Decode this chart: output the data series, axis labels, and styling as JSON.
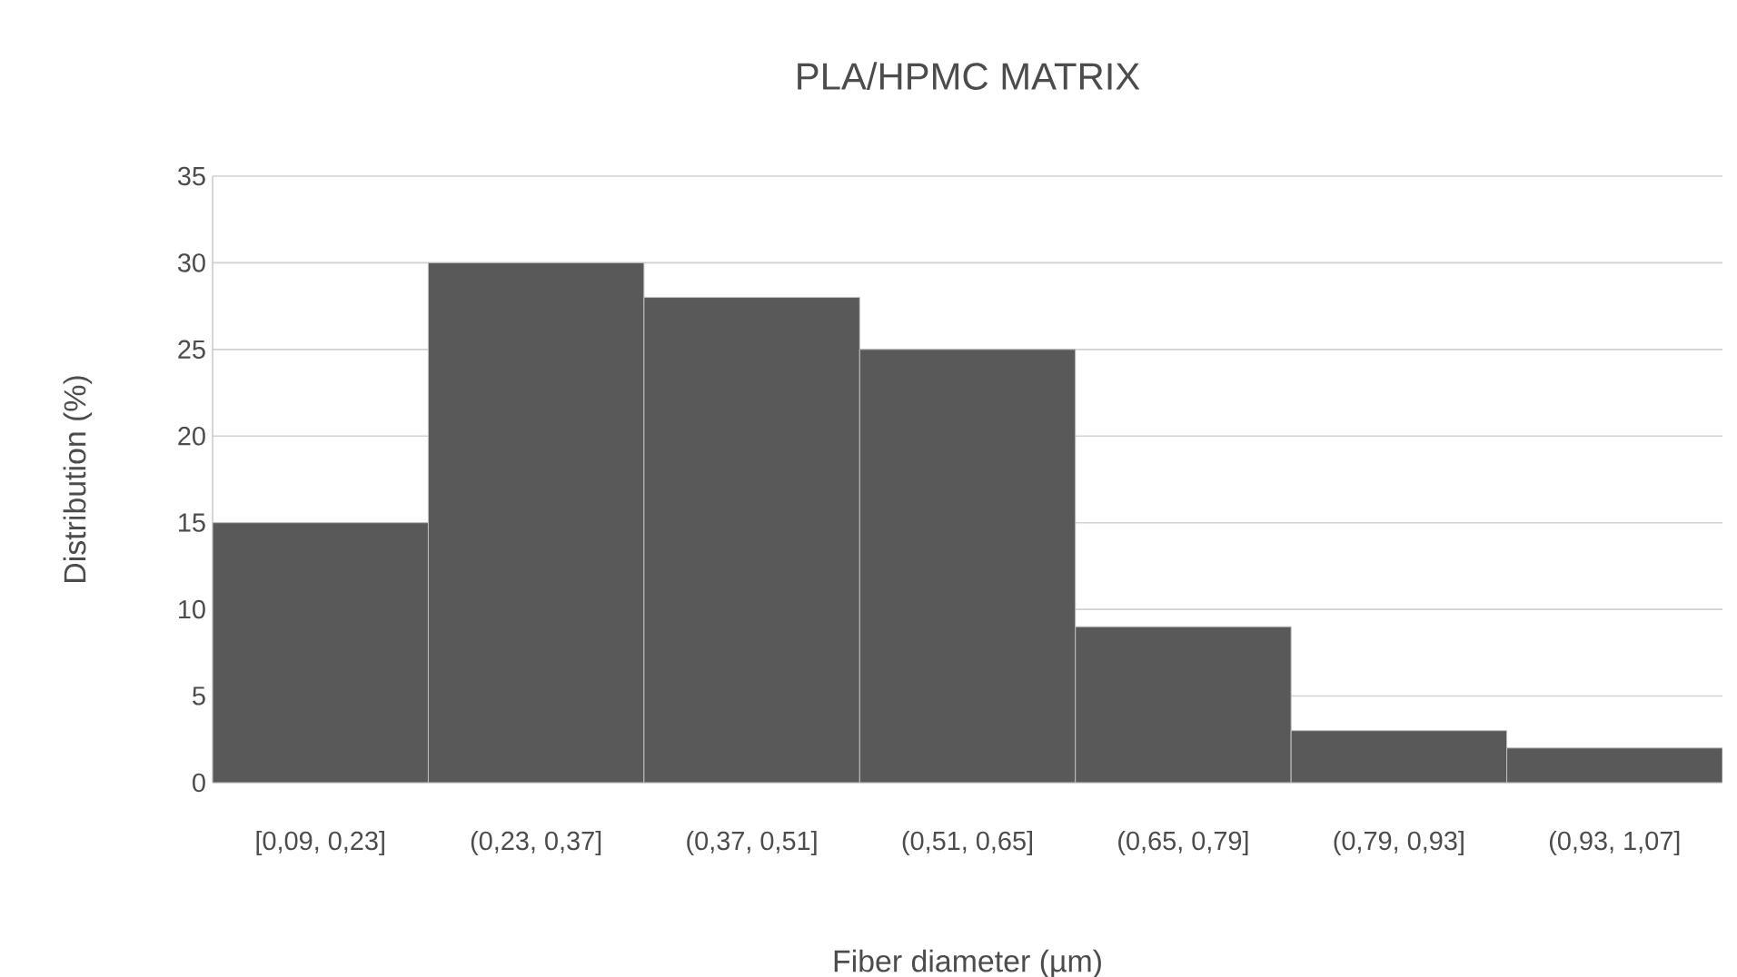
{
  "chart_data": {
    "type": "bar",
    "title": "PLA/HPMC MATRIX",
    "xlabel": "Fiber diameter (µm)",
    "ylabel": "Distribution (%)",
    "categories": [
      "[0,09, 0,23]",
      "(0,23, 0,37]",
      "(0,37, 0,51]",
      "(0,51, 0,65]",
      "(0,65, 0,79]",
      "(0,79, 0,93]",
      "(0,93, 1,07]"
    ],
    "values": [
      15,
      30,
      28,
      25,
      9,
      3,
      2
    ],
    "color": "#595959",
    "ylim": [
      0,
      35
    ],
    "yticks": [
      0,
      5,
      10,
      15,
      20,
      25,
      30,
      35
    ],
    "grid": "y"
  }
}
